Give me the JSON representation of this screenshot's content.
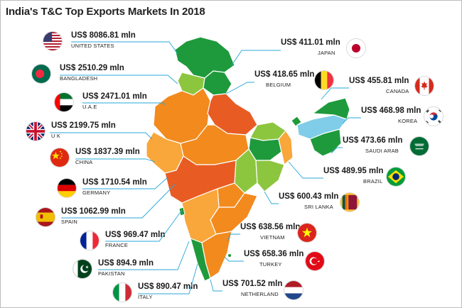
{
  "title": "India's T&C Top Exports Markets  In 2018",
  "colors": {
    "leader_line": "#29a7d8",
    "deep_green": "#1e9a3c",
    "light_green": "#8cc63f",
    "orange": "#f28a1e",
    "red_orange": "#e85c24",
    "light_blue": "#7fcde8"
  },
  "markets": [
    {
      "value": "US$ 8086.81 mln",
      "country": "UNITED STATES",
      "flag_icon": "usa-flag-icon"
    },
    {
      "value": "US$ 2510.29 mln",
      "country": "BANGLADESH",
      "flag_icon": "bangladesh-flag-icon"
    },
    {
      "value": "US$ 2471.01 mln",
      "country": "U.A.E",
      "flag_icon": "uae-flag-icon"
    },
    {
      "value": "US$ 2199.75 mln",
      "country": "U K",
      "flag_icon": "uk-flag-icon"
    },
    {
      "value": "US$ 1837.39 mln",
      "country": "CHINA",
      "flag_icon": "china-flag-icon"
    },
    {
      "value": "US$ 1710.54 mln",
      "country": "GERMANY",
      "flag_icon": "germany-flag-icon"
    },
    {
      "value": "US$ 1062.99 mln",
      "country": "SPAIN",
      "flag_icon": "spain-flag-icon"
    },
    {
      "value": "US$ 969.47 mln",
      "country": "FRANCE",
      "flag_icon": "france-flag-icon"
    },
    {
      "value": "US$ 894.9 mln",
      "country": "PAKISTAN",
      "flag_icon": "pakistan-flag-icon"
    },
    {
      "value": "US$ 890.47 mln",
      "country": "ITALY",
      "flag_icon": "italy-flag-icon"
    },
    {
      "value": "US$ 411.01 mln",
      "country": "JAPAN",
      "flag_icon": "japan-flag-icon"
    },
    {
      "value": "US$ 418.65 mln",
      "country": "BELGIUM",
      "flag_icon": "belgium-flag-icon"
    },
    {
      "value": "US$ 455.81 mln",
      "country": "CANADA",
      "flag_icon": "canada-flag-icon"
    },
    {
      "value": "US$ 468.98 mln",
      "country": "KOREA",
      "flag_icon": "korea-flag-icon"
    },
    {
      "value": "US$ 473.66 mln",
      "country": "SAUDI ARAB",
      "flag_icon": "saudi-arabia-flag-icon"
    },
    {
      "value": "US$ 489.95 mln",
      "country": "BRAZIL",
      "flag_icon": "brazil-flag-icon"
    },
    {
      "value": "US$ 600.43 mln",
      "country": "SRI LANKA",
      "flag_icon": "sri-lanka-flag-icon"
    },
    {
      "value": "US$ 638.56 mln",
      "country": "VIETNAM",
      "flag_icon": "vietnam-flag-icon"
    },
    {
      "value": "US$ 658.36 mln",
      "country": "TURKEY",
      "flag_icon": "turkey-flag-icon"
    },
    {
      "value": "US$ 701.52 mln",
      "country": "NETHERLAND",
      "flag_icon": "netherlands-flag-icon"
    }
  ]
}
